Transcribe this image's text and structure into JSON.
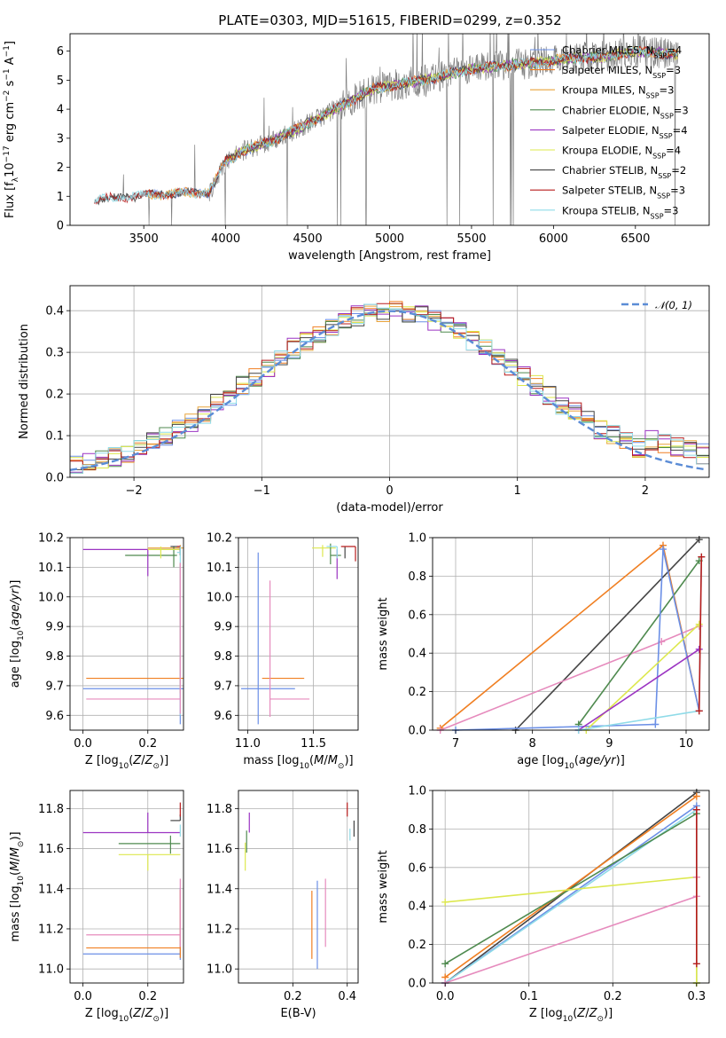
{
  "figure": {
    "title": "PLATE=0303, MJD=51615, FIBERID=0299, z=0.352"
  },
  "colors": {
    "Chabrier MILES": "#6b8fe6",
    "Salpeter MILES": "#f07f22",
    "Kroupa MILES": "#e8a33a",
    "Chabrier ELODIE": "#4f8a4f",
    "Salpeter ELODIE": "#9b34c2",
    "Kroupa ELODIE": "#dde84e",
    "Chabrier STELIB": "#444444",
    "Salpeter STELIB": "#b81c1c",
    "Kroupa STELIB": "#8fdbe8",
    "data": "#808080",
    "gaussian": "#5b8cd6"
  },
  "chart_data": [
    {
      "id": "spectrum",
      "type": "line",
      "xlabel": "wavelength [Angstrom, rest frame]",
      "ylabel": "Flux [f_λ 10^-17 erg cm^-2 s^-1 A^-1]",
      "xlim": [
        3050,
        6950
      ],
      "ylim": [
        0,
        6.6
      ],
      "xticks": [
        3500,
        4000,
        4500,
        5000,
        5500,
        6000,
        6500
      ],
      "yticks": [
        0,
        1,
        2,
        3,
        4,
        5,
        6
      ],
      "grid": false,
      "legend_position": "top-right",
      "legend": [
        {
          "model": "Chabrier MILES",
          "label": "Chabrier MILES, N",
          "nssp": "=4"
        },
        {
          "model": "Salpeter MILES",
          "label": "Salpeter MILES, N",
          "nssp": "=3"
        },
        {
          "model": "Kroupa MILES",
          "label": "Kroupa MILES, N",
          "nssp": "=3"
        },
        {
          "model": "Chabrier ELODIE",
          "label": "Chabrier ELODIE, N",
          "nssp": "=3"
        },
        {
          "model": "Salpeter ELODIE",
          "label": "Salpeter ELODIE, N",
          "nssp": "=4"
        },
        {
          "model": "Kroupa ELODIE",
          "label": "Kroupa ELODIE, N",
          "nssp": "=4"
        },
        {
          "model": "Chabrier STELIB",
          "label": "Chabrier STELIB, N",
          "nssp": "=2"
        },
        {
          "model": "Salpeter STELIB",
          "label": "Salpeter STELIB, N",
          "nssp": "=3"
        },
        {
          "model": "Kroupa STELIB",
          "label": "Kroupa STELIB, N",
          "nssp": "=3"
        }
      ],
      "continuum_shape": {
        "wavelength": [
          3200,
          3400,
          3520,
          3700,
          3900,
          4000,
          4100,
          4300,
          4500,
          4700,
          4900,
          5100,
          5300,
          5500,
          5700,
          5900,
          6100,
          6300,
          6500,
          6750
        ],
        "flux": [
          0.85,
          1.0,
          1.05,
          1.1,
          1.15,
          2.2,
          2.55,
          2.95,
          3.5,
          4.1,
          4.7,
          4.9,
          5.1,
          5.4,
          5.5,
          5.6,
          5.75,
          5.8,
          6.0,
          5.9
        ]
      }
    },
    {
      "id": "residuals",
      "type": "step",
      "xlabel": "(data-model)/error",
      "ylabel": "Normed distribution",
      "xlim": [
        -2.5,
        2.5
      ],
      "ylim": [
        0,
        0.46
      ],
      "xticks": [
        -2,
        -1,
        0,
        1,
        2
      ],
      "yticks": [
        0.0,
        0.1,
        0.2,
        0.3,
        0.4
      ],
      "grid": true,
      "legend_position": "top-right",
      "legend": [
        {
          "label": "𝒩(0, 1)",
          "style": "dashed"
        }
      ],
      "bin_width": 0.1,
      "note_values": "each model histogram follows the standard normal density with small per-bin scatter"
    },
    {
      "id": "age_vs_Z",
      "type": "errorbar",
      "xlabel": "Z [log10(Z/Z⊙)]",
      "ylabel": "age  [log10(age/yr)]",
      "xlim": [
        -0.04,
        0.31
      ],
      "ylim": [
        9.55,
        10.2
      ],
      "xticks": [
        0.0,
        0.2
      ],
      "yticks": [
        9.6,
        9.7,
        9.8,
        9.9,
        10.0,
        10.1,
        10.2
      ],
      "grid": true,
      "points": [
        {
          "model": "Chabrier MILES",
          "x": 0.3,
          "y": 9.69,
          "xerr": [
            0.3,
            0.01
          ],
          "yerr": [
            0.12,
            0.42
          ]
        },
        {
          "model": "Salpeter MILES",
          "x": 0.3,
          "y": 9.725,
          "xerr": [
            0.29,
            0.01
          ],
          "yerr": [
            0.05,
            0.39
          ]
        },
        {
          "model": "Kroupa MILES",
          "x": 0.3,
          "y": 10.165,
          "xerr": [
            0.1,
            0.01
          ],
          "yerr": [
            0.02,
            0.01
          ]
        },
        {
          "model": "Chabrier ELODIE",
          "x": 0.28,
          "y": 10.14,
          "xerr": [
            0.15,
            0.01
          ],
          "yerr": [
            0.04,
            0.03
          ]
        },
        {
          "model": "Salpeter ELODIE",
          "x": 0.2,
          "y": 10.16,
          "xerr": [
            0.2,
            0.1
          ],
          "yerr": [
            0.09,
            0.0
          ]
        },
        {
          "model": "Kroupa ELODIE",
          "x": 0.24,
          "y": 10.16,
          "xerr": [
            0.04,
            0.06
          ],
          "yerr": [
            0.03,
            0.01
          ]
        },
        {
          "model": "Chabrier STELIB",
          "x": 0.3,
          "y": 10.17,
          "xerr": [
            0.03,
            0.0
          ],
          "yerr": [
            0.03,
            0.0
          ]
        },
        {
          "model": "Salpeter STELIB",
          "x": 0.3,
          "y": 10.17,
          "xerr": [
            0.01,
            0.0
          ],
          "yerr": [
            0.03,
            0.0
          ]
        },
        {
          "model": "Kroupa STELIB",
          "x": 0.3,
          "y": 10.15,
          "xerr": [
            0.01,
            0.0
          ],
          "yerr": [
            0.55,
            0.02
          ]
        },
        {
          "model": "pink",
          "x": 0.3,
          "y": 9.655,
          "xerr": [
            0.29,
            0.0
          ],
          "yerr": [
            0.05,
            0.46
          ]
        }
      ]
    },
    {
      "id": "age_vs_mass",
      "type": "errorbar",
      "xlabel": "mass [log10(M/M⊙)]",
      "ylabel": "",
      "xlim": [
        10.93,
        11.84
      ],
      "ylim": [
        9.55,
        10.2
      ],
      "xticks": [
        11.0,
        11.5
      ],
      "yticks": [
        9.6,
        9.7,
        9.8,
        9.9,
        10.0,
        10.1,
        10.2
      ],
      "grid": true,
      "points": [
        {
          "model": "Chabrier MILES",
          "x": 11.08,
          "y": 9.69,
          "xerr": [
            0.13,
            0.28
          ],
          "yerr": [
            0.12,
            0.46
          ]
        },
        {
          "model": "Salpeter MILES",
          "x": 11.11,
          "y": 9.725,
          "xerr": [
            0.0,
            0.32
          ],
          "yerr": [
            0.0,
            0.0
          ]
        },
        {
          "model": "pink",
          "x": 11.17,
          "y": 9.655,
          "xerr": [
            0.0,
            0.3
          ],
          "yerr": [
            0.06,
            0.4
          ]
        },
        {
          "model": "Kroupa ELODIE",
          "x": 11.57,
          "y": 10.165,
          "xerr": [
            0.08,
            0.1
          ],
          "yerr": [
            0.03,
            0.01
          ]
        },
        {
          "model": "Chabrier ELODIE",
          "x": 11.63,
          "y": 10.14,
          "xerr": [
            0.0,
            0.08
          ],
          "yerr": [
            0.03,
            0.04
          ]
        },
        {
          "model": "Salpeter ELODIE",
          "x": 11.68,
          "y": 10.16,
          "xerr": [
            0.0,
            0.0
          ],
          "yerr": [
            0.1,
            0.0
          ]
        },
        {
          "model": "Chabrier STELIB",
          "x": 11.74,
          "y": 10.17,
          "xerr": [
            0.0,
            0.0
          ],
          "yerr": [
            0.04,
            0.0
          ]
        },
        {
          "model": "Salpeter STELIB",
          "x": 11.82,
          "y": 10.17,
          "xerr": [
            0.11,
            0.0
          ],
          "yerr": [
            0.05,
            0.0
          ]
        },
        {
          "model": "Kroupa STELIB",
          "x": 11.68,
          "y": 10.17,
          "xerr": [
            0.08,
            0.0
          ],
          "yerr": [
            0.04,
            0.0
          ]
        }
      ]
    },
    {
      "id": "weight_vs_age",
      "type": "line",
      "xlabel": "age  [log10(age/yr)]",
      "ylabel": "mass weight",
      "xlim": [
        6.7,
        10.3
      ],
      "ylim": [
        0,
        1.0
      ],
      "xticks": [
        7,
        8,
        9,
        10
      ],
      "yticks": [
        0.0,
        0.2,
        0.4,
        0.6,
        0.8,
        1.0
      ],
      "grid": true,
      "series": [
        {
          "model": "Salpeter MILES",
          "x": [
            6.8,
            9.7,
            10.17
          ],
          "y": [
            0.01,
            0.96,
            0.1
          ]
        },
        {
          "model": "Chabrier STELIB",
          "x": [
            7.78,
            10.17
          ],
          "y": [
            0.0,
            0.99
          ]
        },
        {
          "model": "pink",
          "x": [
            6.8,
            9.68,
            10.17
          ],
          "y": [
            0.0,
            0.46,
            0.54
          ]
        },
        {
          "model": "Chabrier ELODIE",
          "x": [
            8.6,
            10.17
          ],
          "y": [
            0.03,
            0.88
          ]
        },
        {
          "model": "Chabrier MILES",
          "x": [
            7.0,
            9.6,
            9.7,
            10.17
          ],
          "y": [
            0.0,
            0.03,
            0.94,
            0.1
          ]
        },
        {
          "model": "Kroupa ELODIE",
          "x": [
            8.7,
            10.17
          ],
          "y": [
            0.0,
            0.55
          ]
        },
        {
          "model": "Salpeter ELODIE",
          "x": [
            8.6,
            10.17
          ],
          "y": [
            0.0,
            0.42
          ]
        },
        {
          "model": "Kroupa STELIB",
          "x": [
            8.6,
            10.17,
            10.2
          ],
          "y": [
            0.0,
            0.1,
            0.9
          ]
        },
        {
          "model": "Salpeter STELIB",
          "x": [
            10.17,
            10.2
          ],
          "y": [
            0.1,
            0.9
          ]
        }
      ]
    },
    {
      "id": "mass_vs_Z",
      "type": "errorbar",
      "xlabel": "Z [log10(Z/Z⊙)]",
      "ylabel": "mass [log10(M/M⊙)]",
      "xlim": [
        -0.04,
        0.31
      ],
      "ylim": [
        10.93,
        11.89
      ],
      "xticks": [
        0.0,
        0.2
      ],
      "yticks": [
        11.0,
        11.2,
        11.4,
        11.6,
        11.8
      ],
      "grid": true,
      "points": [
        {
          "model": "Chabrier MILES",
          "x": 0.3,
          "y": 11.075,
          "xerr": [
            0.3,
            0.0
          ],
          "yerr": [
            0.03,
            0.33
          ]
        },
        {
          "model": "Salpeter MILES",
          "x": 0.3,
          "y": 11.105,
          "xerr": [
            0.29,
            0.0
          ],
          "yerr": [
            0.05,
            0.29
          ]
        },
        {
          "model": "pink",
          "x": 0.3,
          "y": 11.17,
          "xerr": [
            0.29,
            0.0
          ],
          "yerr": [
            0.06,
            0.28
          ]
        },
        {
          "model": "Chabrier ELODIE",
          "x": 0.27,
          "y": 11.625,
          "xerr": [
            0.16,
            0.03
          ],
          "yerr": [
            0.05,
            0.04
          ]
        },
        {
          "model": "Salpeter ELODIE",
          "x": 0.2,
          "y": 11.68,
          "xerr": [
            0.2,
            0.1
          ],
          "yerr": [
            0.0,
            0.1
          ]
        },
        {
          "model": "Kroupa ELODIE",
          "x": 0.2,
          "y": 11.57,
          "xerr": [
            0.09,
            0.1
          ],
          "yerr": [
            0.08,
            0.0
          ]
        },
        {
          "model": "Chabrier STELIB",
          "x": 0.3,
          "y": 11.74,
          "xerr": [
            0.03,
            0.0
          ],
          "yerr": [
            0.0,
            0.03
          ]
        },
        {
          "model": "Salpeter STELIB",
          "x": 0.3,
          "y": 11.79,
          "xerr": [
            0.0,
            0.0
          ],
          "yerr": [
            0.03,
            0.04
          ]
        },
        {
          "model": "Kroupa STELIB",
          "x": 0.3,
          "y": 11.7,
          "xerr": [
            0.0,
            0.0
          ],
          "yerr": [
            0.04,
            0.02
          ]
        }
      ]
    },
    {
      "id": "mass_vs_EBV",
      "type": "errorbar",
      "xlabel": "E(B-V)",
      "ylabel": "",
      "xlim": [
        0.0,
        0.44
      ],
      "ylim": [
        10.93,
        11.89
      ],
      "xticks": [
        0.2,
        0.4
      ],
      "yticks": [
        11.0,
        11.2,
        11.4,
        11.6,
        11.8
      ],
      "grid": true,
      "points": [
        {
          "model": "Chabrier MILES",
          "x": 0.29,
          "y": 11.2,
          "xerr": [
            0.0,
            0.0
          ],
          "yerr": [
            0.2,
            0.24
          ]
        },
        {
          "model": "Salpeter MILES",
          "x": 0.27,
          "y": 11.1,
          "xerr": [
            0.0,
            0.0
          ],
          "yerr": [
            0.05,
            0.29
          ]
        },
        {
          "model": "pink",
          "x": 0.32,
          "y": 11.17,
          "xerr": [
            0.0,
            0.0
          ],
          "yerr": [
            0.06,
            0.28
          ]
        },
        {
          "model": "Kroupa ELODIE",
          "x": 0.025,
          "y": 11.57,
          "xerr": [
            0.0,
            0.0
          ],
          "yerr": [
            0.08,
            0.06
          ]
        },
        {
          "model": "Chabrier ELODIE",
          "x": 0.03,
          "y": 11.63,
          "xerr": [
            0.0,
            0.0
          ],
          "yerr": [
            0.05,
            0.06
          ]
        },
        {
          "model": "Salpeter ELODIE",
          "x": 0.04,
          "y": 11.68,
          "xerr": [
            0.0,
            0.0
          ],
          "yerr": [
            0.0,
            0.1
          ]
        },
        {
          "model": "Salpeter STELIB",
          "x": 0.4,
          "y": 11.79,
          "xerr": [
            0.0,
            0.0
          ],
          "yerr": [
            0.03,
            0.04
          ]
        },
        {
          "model": "Chabrier STELIB",
          "x": 0.425,
          "y": 11.7,
          "xerr": [
            0.0,
            0.0
          ],
          "yerr": [
            0.04,
            0.04
          ]
        },
        {
          "model": "Kroupa STELIB",
          "x": 0.41,
          "y": 11.68,
          "xerr": [
            0.0,
            0.0
          ],
          "yerr": [
            0.04,
            0.02
          ]
        }
      ]
    },
    {
      "id": "weight_vs_Z",
      "type": "line",
      "xlabel": "Z [log10(Z/Z⊙)]",
      "ylabel": "mass weight",
      "xlim": [
        -0.015,
        0.315
      ],
      "ylim": [
        0,
        1.0
      ],
      "xticks": [
        0.0,
        0.1,
        0.2,
        0.3
      ],
      "yticks": [
        0.0,
        0.2,
        0.4,
        0.6,
        0.8,
        1.0
      ],
      "grid": true,
      "series": [
        {
          "model": "Chabrier STELIB",
          "x": [
            0.0,
            0.3
          ],
          "y": [
            0.0,
            0.99
          ]
        },
        {
          "model": "Salpeter MILES",
          "x": [
            0.0,
            0.3
          ],
          "y": [
            0.03,
            0.97
          ]
        },
        {
          "model": "Chabrier MILES",
          "x": [
            0.0,
            0.3
          ],
          "y": [
            0.0,
            0.92
          ]
        },
        {
          "model": "Kroupa STELIB",
          "x": [
            0.0,
            0.3,
            0.3
          ],
          "y": [
            0.0,
            0.9,
            0.1
          ]
        },
        {
          "model": "Chabrier ELODIE",
          "x": [
            0.0,
            0.3,
            0.3
          ],
          "y": [
            0.1,
            0.88,
            0.0
          ]
        },
        {
          "model": "Kroupa ELODIE",
          "x": [
            0.0,
            0.3,
            0.3
          ],
          "y": [
            0.42,
            0.55,
            0.0
          ]
        },
        {
          "model": "pink",
          "x": [
            0.0,
            0.3,
            0.3
          ],
          "y": [
            0.0,
            0.45,
            0.55
          ]
        },
        {
          "model": "Salpeter STELIB",
          "x": [
            0.3,
            0.3
          ],
          "y": [
            0.1,
            0.9
          ]
        }
      ]
    }
  ]
}
